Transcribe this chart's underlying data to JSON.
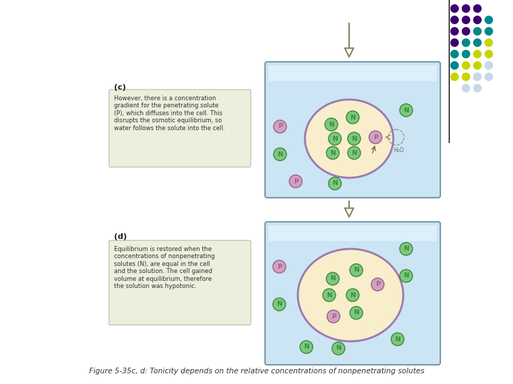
{
  "caption": "Figure 5-35c, d: Tonicity depends on the relative concentrations of nonpenetrating solutes",
  "panel_c_label": "(c)",
  "panel_d_label": "(d)",
  "panel_c_text": "However, there is a concentration\ngradient for the penetrating solute\n(P), which diffuses into the cell. This\ndisrupts the osmotic equilibrium, so\nwater follows the solute into the cell.",
  "panel_d_text": "Equilibrium is restored when the\nconcentrations of nonpenetrating\nsolutes (N), are equal in the cell\nand the solution. The cell gained\nvolume at equilibrium, therefore\nthe solution was hypotonic.",
  "bg_color": "#ffffff",
  "container_color": "#cce5f5",
  "cell_color": "#f8eecb",
  "cell_border_color": "#9b7ab0",
  "N_face": "#7ec87e",
  "N_edge": "#3a8a3a",
  "P_face": "#d4a0c0",
  "P_edge": "#9a608a",
  "textbox_bg": "#eeeedd",
  "textbox_edge": "#bbbbaa",
  "container_edge": "#7a9aaa",
  "dot_grid": [
    [
      "#3d0070",
      "#3d0070",
      "#3d0070",
      null
    ],
    [
      "#3d0070",
      "#3d0070",
      "#3d0070",
      "#008888"
    ],
    [
      "#3d0070",
      "#3d0070",
      "#008888",
      "#008888"
    ],
    [
      "#3d0070",
      "#008888",
      "#008888",
      "#c8d400"
    ],
    [
      "#008888",
      "#008888",
      "#c8d400",
      "#c8d400"
    ],
    [
      "#008888",
      "#c8d400",
      "#c8d400",
      "#c8d8e8"
    ],
    [
      "#c8d400",
      "#c8d400",
      "#c8d8e8",
      "#c8d8e8"
    ],
    [
      null,
      "#c8d8e8",
      "#c8d8e8",
      null
    ]
  ]
}
